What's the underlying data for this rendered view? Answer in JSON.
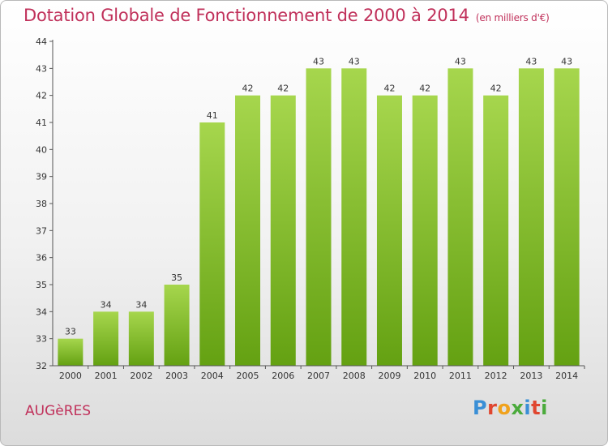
{
  "chart_data": {
    "type": "bar",
    "title": "Dotation Globale de Fonctionnement de 2000 à 2014",
    "subtitle": "(en milliers d'€)",
    "categories": [
      "2000",
      "2001",
      "2002",
      "2003",
      "2004",
      "2005",
      "2006",
      "2007",
      "2008",
      "2009",
      "2010",
      "2011",
      "2012",
      "2013",
      "2014"
    ],
    "values": [
      33,
      34,
      34,
      35,
      41,
      42,
      42,
      43,
      43,
      42,
      42,
      43,
      42,
      43,
      43
    ],
    "yticks": [
      32,
      33,
      34,
      35,
      36,
      37,
      38,
      39,
      40,
      41,
      42,
      43,
      44
    ],
    "ylim": [
      32,
      44
    ],
    "xlabel": "",
    "ylabel": "",
    "grid": false,
    "bar_color_top": "#a6d64d",
    "bar_color_bottom": "#64a112"
  },
  "footer": {
    "commune": "AUGèRES",
    "logo_letters": [
      "P",
      "r",
      "o",
      "x",
      "i",
      "t",
      "i"
    ],
    "logo_colors": [
      "#3a8fd6",
      "#e0462f",
      "#f0a21c",
      "#4bab3c",
      "#3a8fd6",
      "#e0462f",
      "#4bab3c"
    ]
  },
  "colors": {
    "title": "#c0305a",
    "axis": "#555555"
  }
}
